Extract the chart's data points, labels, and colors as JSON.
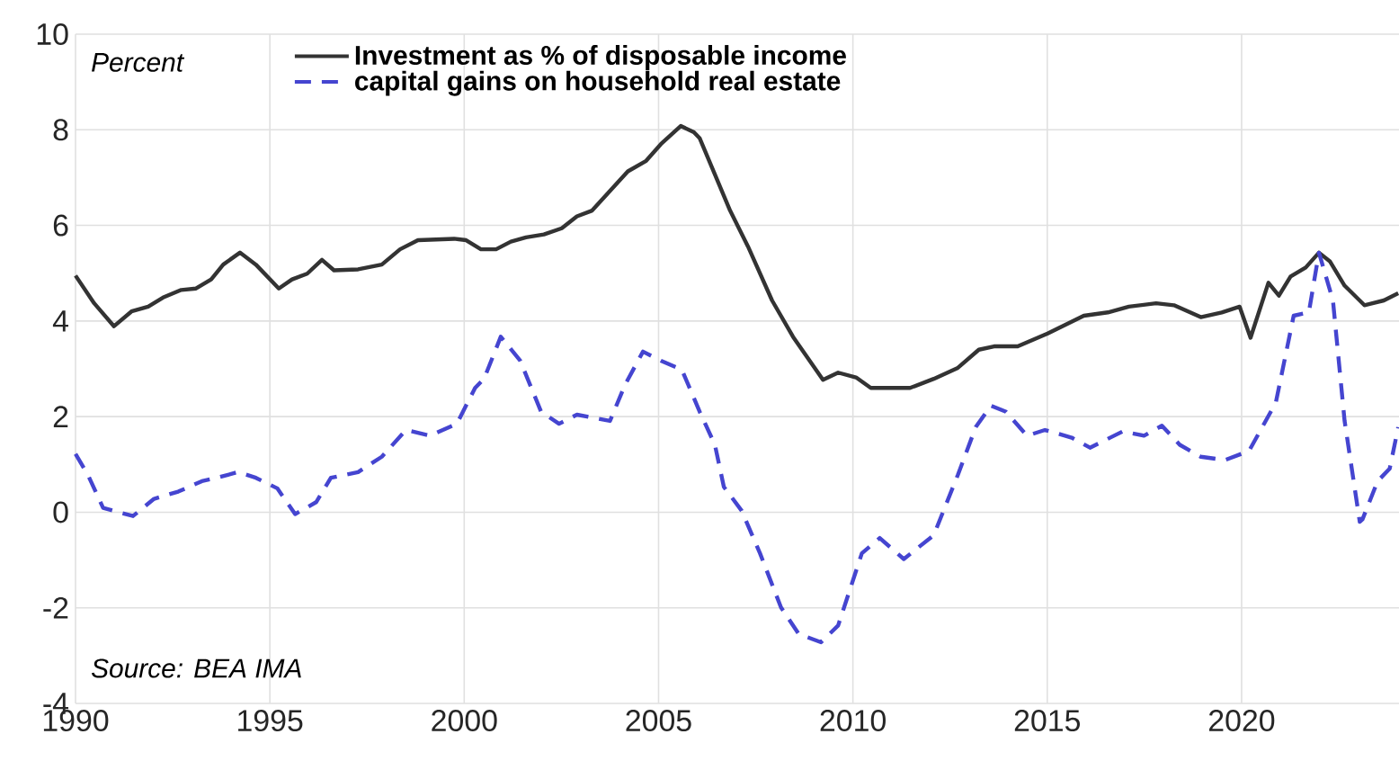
{
  "chart_data": {
    "type": "line",
    "annotations": [
      "Percent",
      "Source: BEA IMA"
    ],
    "series": [
      {
        "name": "Investment as % of disposable income",
        "color": "#333333",
        "line_style": "solid",
        "x": [
          1990.0,
          1990.48,
          1990.99,
          1991.44,
          1991.87,
          1992.25,
          1992.72,
          1993.1,
          1993.49,
          1993.8,
          1994.23,
          1994.64,
          1995.23,
          1995.57,
          1995.96,
          1996.34,
          1996.65,
          1997.27,
          1997.88,
          1998.35,
          1998.81,
          1999.74,
          2000.05,
          2000.43,
          2000.82,
          2001.2,
          2001.59,
          2002.05,
          2002.51,
          2002.9,
          2003.29,
          2003.75,
          2004.21,
          2004.68,
          2005.06,
          2005.57,
          2005.91,
          2006.06,
          2006.84,
          2007.3,
          2007.92,
          2008.46,
          2009.23,
          2009.62,
          2010.08,
          2010.46,
          2011.0,
          2011.47,
          2012.08,
          2012.7,
          2013.24,
          2013.63,
          2014.24,
          2015.01,
          2015.94,
          2016.56,
          2017.1,
          2017.8,
          2018.26,
          2018.95,
          2019.49,
          2019.95,
          2020.23,
          2020.69,
          2020.96,
          2021.26,
          2021.65,
          2021.99,
          2022.27,
          2022.65,
          2023.16,
          2023.66,
          2024.03
        ],
        "values": [
          4.95,
          4.37,
          3.89,
          4.2,
          4.3,
          4.49,
          4.65,
          4.68,
          4.87,
          5.18,
          5.43,
          5.18,
          4.68,
          4.87,
          4.99,
          5.28,
          5.06,
          5.08,
          5.18,
          5.5,
          5.69,
          5.72,
          5.69,
          5.5,
          5.5,
          5.66,
          5.75,
          5.81,
          5.94,
          6.19,
          6.31,
          6.72,
          7.13,
          7.35,
          7.7,
          8.08,
          7.95,
          7.82,
          6.31,
          5.56,
          4.43,
          3.67,
          2.77,
          2.92,
          2.82,
          2.6,
          2.6,
          2.6,
          2.79,
          3.02,
          3.4,
          3.47,
          3.47,
          3.74,
          4.11,
          4.18,
          4.3,
          4.37,
          4.33,
          4.08,
          4.18,
          4.3,
          3.65,
          4.8,
          4.53,
          4.93,
          5.12,
          5.43,
          5.25,
          4.74,
          4.33,
          4.43,
          4.58
        ]
      },
      {
        "name": "capital gains on household real estate",
        "color": "#4545d0",
        "line_style": "dashed",
        "x": [
          1990.0,
          1990.32,
          1990.71,
          1991.48,
          1992.02,
          1992.64,
          1993.25,
          1993.64,
          1994.18,
          1994.64,
          1995.19,
          1995.65,
          1996.19,
          1996.57,
          1997.27,
          1997.88,
          1998.5,
          1999.12,
          1999.81,
          2000.28,
          2000.51,
          2000.94,
          2001.44,
          2001.98,
          2002.44,
          2002.9,
          2003.75,
          2004.14,
          2004.6,
          2005.06,
          2005.6,
          2006.06,
          2006.45,
          2006.68,
          2007.14,
          2007.61,
          2008.15,
          2008.61,
          2009.18,
          2009.62,
          2010.23,
          2010.69,
          2011.31,
          2012.08,
          2012.7,
          2013.16,
          2013.55,
          2013.94,
          2014.48,
          2014.94,
          2015.63,
          2016.1,
          2016.94,
          2017.49,
          2017.95,
          2018.41,
          2018.95,
          2019.57,
          2020.19,
          2020.88,
          2021.34,
          2021.73,
          2021.99,
          2022.35,
          2022.65,
          2023.04,
          2023.11,
          2023.5,
          2023.81,
          2024.03
        ],
        "values": [
          1.22,
          0.78,
          0.09,
          -0.08,
          0.28,
          0.43,
          0.65,
          0.72,
          0.84,
          0.72,
          0.5,
          -0.04,
          0.21,
          0.72,
          0.84,
          1.16,
          1.72,
          1.6,
          1.85,
          2.6,
          2.79,
          3.67,
          3.17,
          2.1,
          1.85,
          2.04,
          1.91,
          2.67,
          3.36,
          3.17,
          2.98,
          2.1,
          1.41,
          0.53,
          0.03,
          -0.86,
          -1.99,
          -2.55,
          -2.72,
          -2.37,
          -0.86,
          -0.54,
          -0.98,
          -0.48,
          0.78,
          1.78,
          2.23,
          2.1,
          1.6,
          1.72,
          1.56,
          1.35,
          1.69,
          1.6,
          1.81,
          1.41,
          1.16,
          1.09,
          1.28,
          2.29,
          4.11,
          4.18,
          5.43,
          4.43,
          1.91,
          -0.2,
          -0.15,
          0.65,
          0.91,
          1.78
        ]
      }
    ],
    "xlim": [
      1990,
      2024.05
    ],
    "ylim": [
      -4,
      10
    ],
    "xticks": [
      1990,
      1995,
      2000,
      2005,
      2010,
      2015,
      2020
    ],
    "yticks": [
      -4,
      -2,
      0,
      2,
      4,
      6,
      8,
      10
    ],
    "grid": true,
    "legend": "top"
  }
}
